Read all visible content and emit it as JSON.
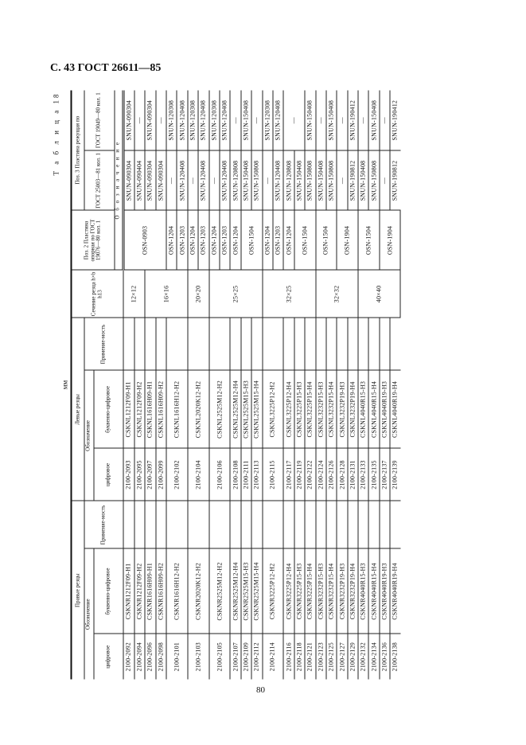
{
  "page": {
    "title": "С. 43 ГОСТ 26611—85",
    "number": "80",
    "table_label": "Т а б л и ц а 18",
    "units": "мм"
  },
  "headers": {
    "right_cutters": "Правые резцы",
    "left_cutters": "Левые резцы",
    "designation": "Обозначение",
    "digital": "цифровое",
    "alphanumeric": "буквенно-цифровое",
    "applicability": "Применяе-мость",
    "section": "Сечение резца h×b h13",
    "pos2": "Поз. 2 Пластина опорная по ГОСТ 19076—80 кол. 1",
    "pos3": "Поз. 3 Пластина режущая по",
    "gost25003": "ГОСТ 25003—81 кол. 1",
    "gost19049": "ГОСТ 19049—80 кол. 1",
    "designation_spaced": "О б о з н а ч е н и е"
  },
  "table": {
    "right_cutters": [
      {
        "digital": "2100-2092",
        "alpha": "CSKNR1212F09-H1",
        "use": "",
        "rowspan": 1
      },
      {
        "digital": "2100-2094",
        "alpha": "CSKNR1212F09-H2",
        "use": "",
        "rowspan": 1
      },
      {
        "digital": "2100-2096",
        "alpha": "CSKNR1616H09-H1",
        "use": "",
        "rowspan": 1
      },
      {
        "digital": "2100-2098",
        "alpha": "CSKNR1616H09-H2",
        "use": "",
        "rowspan": 1
      },
      {
        "digital": "2100-2101",
        "alpha": "CSKNR1616H12-H2",
        "use": "",
        "rowspan": 2
      },
      {
        "digital": "2100-2103",
        "alpha": "CSKNR2020K12-H2",
        "use": "",
        "rowspan": 2
      },
      {
        "digital": "2100-2105",
        "alpha": "CSKNR2525M12-H2",
        "use": "",
        "rowspan": 2
      },
      {
        "digital": "2100-2107",
        "alpha": "CSKNR2525M12-H4",
        "use": "",
        "rowspan": 1
      },
      {
        "digital": "2100-2109",
        "alpha": "CSKNR2525M15-H3",
        "use": "",
        "rowspan": 1
      },
      {
        "digital": "2100-2112",
        "alpha": "CSKNR2525M15-H4",
        "use": "",
        "rowspan": 1
      },
      {
        "digital": "2100-2114",
        "alpha": "CSKNR3225P12-H2",
        "use": "",
        "rowspan": 2
      },
      {
        "digital": "2100-2116",
        "alpha": "CSKNR3225P12-H4",
        "use": "",
        "rowspan": 1
      },
      {
        "digital": "2100-2118",
        "alpha": "CSKNR3225P15-H3",
        "use": "",
        "rowspan": 1
      },
      {
        "digital": "2100-2121",
        "alpha": "CSKNR3225P15-H4",
        "use": "",
        "rowspan": 1
      },
      {
        "digital": "2100-2123",
        "alpha": "CSKNR3232P15-H3",
        "use": "",
        "rowspan": 1
      },
      {
        "digital": "2100-2125",
        "alpha": "CSKNR3232P15-H4",
        "use": "",
        "rowspan": 1
      },
      {
        "digital": "2100-2127",
        "alpha": "CSKNR3232P19-H3",
        "use": "",
        "rowspan": 1
      },
      {
        "digital": "2100-2129",
        "alpha": "CSKNR3232P19-H4",
        "use": "",
        "rowspan": 1
      },
      {
        "digital": "2100-2132",
        "alpha": "CSKNR4040R15-H3",
        "use": "",
        "rowspan": 1
      },
      {
        "digital": "2100-2134",
        "alpha": "CSKNR4040R15-H4",
        "use": "",
        "rowspan": 1
      },
      {
        "digital": "2100-2136",
        "alpha": "CSKNR4040R19-H3",
        "use": "",
        "rowspan": 1
      },
      {
        "digital": "2100-2138",
        "alpha": "CSKNR4040R19-H4",
        "use": "",
        "rowspan": 1
      }
    ],
    "left_cutters": [
      {
        "digital": "2100-2093",
        "alpha": "CSKNL1212F09-H1",
        "use": "",
        "rowspan": 1
      },
      {
        "digital": "2100-2095",
        "alpha": "CSKNL1212F09-H2",
        "use": "",
        "rowspan": 1
      },
      {
        "digital": "2100-2097",
        "alpha": "CSKNL1616H09-H1",
        "use": "",
        "rowspan": 1
      },
      {
        "digital": "2100-2099",
        "alpha": "CSKNL1616H09-H2",
        "use": "",
        "rowspan": 1
      },
      {
        "digital": "2100-2102",
        "alpha": "CSKNL1616H12-H2",
        "use": "",
        "rowspan": 2
      },
      {
        "digital": "2100-2104",
        "alpha": "CSKNL2020K12-H2",
        "use": "",
        "rowspan": 2
      },
      {
        "digital": "2100-2106",
        "alpha": "CSKNL2525M12-H2",
        "use": "",
        "rowspan": 2
      },
      {
        "digital": "2100-2108",
        "alpha": "CSKNL2525M12-H4",
        "use": "",
        "rowspan": 1
      },
      {
        "digital": "2100-2111",
        "alpha": "CSKNL2525M15-H3",
        "use": "",
        "rowspan": 1
      },
      {
        "digital": "2100-2113",
        "alpha": "CSKNL2525M15-H4",
        "use": "",
        "rowspan": 1
      },
      {
        "digital": "2100-2115",
        "alpha": "CSKNL3225P12-H2",
        "use": "",
        "rowspan": 2
      },
      {
        "digital": "2100-2117",
        "alpha": "CSKNL3225P12-H4",
        "use": "",
        "rowspan": 1
      },
      {
        "digital": "2100-2119",
        "alpha": "CSKNL3225P15-H3",
        "use": "",
        "rowspan": 1
      },
      {
        "digital": "2100-2122",
        "alpha": "CSKNL3225P15-H4",
        "use": "",
        "rowspan": 1
      },
      {
        "digital": "2100-2124",
        "alpha": "CSKNL3232P15-H3",
        "use": "",
        "rowspan": 1
      },
      {
        "digital": "2100-2126",
        "alpha": "CSKNL3232P15-H4",
        "use": "",
        "rowspan": 1
      },
      {
        "digital": "2100-2128",
        "alpha": "CSKNL3232P19-H3",
        "use": "",
        "rowspan": 1
      },
      {
        "digital": "2100-2131",
        "alpha": "CSKNL3232P19-H4",
        "use": "",
        "rowspan": 1
      },
      {
        "digital": "2100-2133",
        "alpha": "CSKNL4040R15-H3",
        "use": "",
        "rowspan": 1
      },
      {
        "digital": "2100-2135",
        "alpha": "CSKNL4040R15-H4",
        "use": "",
        "rowspan": 1
      },
      {
        "digital": "2100-2137",
        "alpha": "CSKNL4040R19-H3",
        "use": "",
        "rowspan": 1
      },
      {
        "digital": "2100-2139",
        "alpha": "CSKNL4040R19-H4",
        "use": "",
        "rowspan": 1
      }
    ],
    "section": [
      {
        "value": "12×12",
        "rowspan": 2
      },
      {
        "value": "16×16",
        "rowspan": 4
      },
      {
        "value": "20×20",
        "rowspan": 2
      },
      {
        "value": "25×25",
        "rowspan": 5
      },
      {
        "value": "32×25",
        "rowspan": 5
      },
      {
        "value": "32×32",
        "rowspan": 4
      },
      {
        "value": "40×40",
        "rowspan": 4
      }
    ],
    "pos2": [
      {
        "value": "OSN-0903",
        "rowspan": 4
      },
      {
        "value": "OSN-1204",
        "rowspan": 1
      },
      {
        "value": "OSN-1203",
        "rowspan": 1
      },
      {
        "value": "OSN-1204",
        "rowspan": 1
      },
      {
        "value": "OSN-1203",
        "rowspan": 1
      },
      {
        "value": "OSN-1204",
        "rowspan": 1
      },
      {
        "value": "OSN-1203",
        "rowspan": 1
      },
      {
        "value": "OSN-1204",
        "rowspan": 1
      },
      {
        "value": "OSN-1504",
        "rowspan": 2
      },
      {
        "value": "OSN-1204",
        "rowspan": 1
      },
      {
        "value": "OSN-1203",
        "rowspan": 1
      },
      {
        "value": "OSN-1204",
        "rowspan": 1
      },
      {
        "value": "OSN-1504",
        "rowspan": 2
      },
      {
        "value": "OSN-1504",
        "rowspan": 2
      },
      {
        "value": "OSN-1904",
        "rowspan": 2
      },
      {
        "value": "OSN-1504",
        "rowspan": 2
      },
      {
        "value": "OSN-1904",
        "rowspan": 2
      }
    ],
    "pos3_gost25003": [
      {
        "value": "SNUN-090304",
        "rowspan": 1
      },
      {
        "value": "SNUN-090404",
        "rowspan": 1
      },
      {
        "value": "SNUN-090304",
        "rowspan": 1
      },
      {
        "value": "SNUN-090304",
        "rowspan": 1
      },
      {
        "value": "—",
        "rowspan": 1
      },
      {
        "value": "SNUN-120408",
        "rowspan": 1
      },
      {
        "value": "—",
        "rowspan": 1
      },
      {
        "value": "SNUN-120408",
        "rowspan": 1
      },
      {
        "value": "—",
        "rowspan": 1
      },
      {
        "value": "SNUN-120408",
        "rowspan": 1
      },
      {
        "value": "SNUN-120808",
        "rowspan": 1
      },
      {
        "value": "SNUN-150408",
        "rowspan": 1
      },
      {
        "value": "SNUN-150808",
        "rowspan": 1
      },
      {
        "value": "—",
        "rowspan": 1
      },
      {
        "value": "SNUN-120408",
        "rowspan": 1
      },
      {
        "value": "SNUN-120808",
        "rowspan": 1
      },
      {
        "value": "SNUN-150408",
        "rowspan": 1
      },
      {
        "value": "SNUN-150808",
        "rowspan": 1
      },
      {
        "value": "SNUN-150408",
        "rowspan": 1
      },
      {
        "value": "SNUN-150808",
        "rowspan": 1
      },
      {
        "value": "—",
        "rowspan": 1
      },
      {
        "value": "SNUN-190812",
        "rowspan": 1
      },
      {
        "value": "SNUN-150408",
        "rowspan": 1
      },
      {
        "value": "SNUN-150808",
        "rowspan": 1
      },
      {
        "value": "—",
        "rowspan": 1
      },
      {
        "value": "SNUN-190812",
        "rowspan": 1
      }
    ],
    "pos3_gost19049": [
      {
        "value": "SNUN-090304",
        "rowspan": 1
      },
      {
        "value": "—",
        "rowspan": 1
      },
      {
        "value": "SNUN-090304",
        "rowspan": 1
      },
      {
        "value": "—",
        "rowspan": 1
      },
      {
        "value": "SNUN-120308",
        "rowspan": 1
      },
      {
        "value": "SNUN-120408",
        "rowspan": 1
      },
      {
        "value": "SNUN-120308",
        "rowspan": 1
      },
      {
        "value": "SNUN-120408",
        "rowspan": 1
      },
      {
        "value": "SNUN-120308",
        "rowspan": 1
      },
      {
        "value": "SNUN-120408",
        "rowspan": 1
      },
      {
        "value": "—",
        "rowspan": 1
      },
      {
        "value": "SNUN-150408",
        "rowspan": 1
      },
      {
        "value": "—",
        "rowspan": 1
      },
      {
        "value": "SNUN-120308",
        "rowspan": 1
      },
      {
        "value": "SNUN-120408",
        "rowspan": 1
      },
      {
        "value": "—",
        "rowspan": 2
      },
      {
        "value": "SNUN-150408",
        "rowspan": 1
      },
      {
        "value": "—",
        "rowspan": 1
      },
      {
        "value": "SNUN-150408",
        "rowspan": 1
      },
      {
        "value": "—",
        "rowspan": 1
      },
      {
        "value": "SNUN-190412",
        "rowspan": 1
      },
      {
        "value": "—",
        "rowspan": 1
      },
      {
        "value": "SNUN-150408",
        "rowspan": 1
      },
      {
        "value": "—",
        "rowspan": 1
      },
      {
        "value": "SNUN-190412",
        "rowspan": 1
      }
    ]
  }
}
